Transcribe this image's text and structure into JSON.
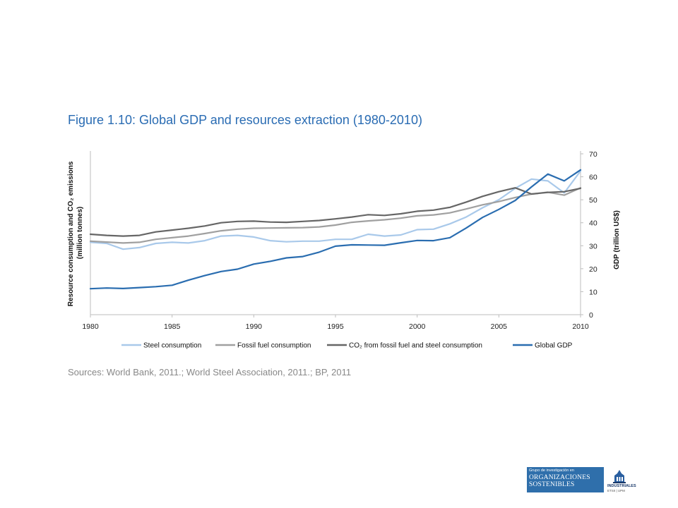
{
  "title": "Figure 1.10: Global GDP and resources extraction (1980-2010)",
  "sources": "Sources: World Bank, 2011.; World Steel Association, 2011.; BP, 2011",
  "logo": {
    "small_text": "Grupo de investigación en",
    "line1": "ORGANIZACIONES",
    "line2": "SOSTENIBLES",
    "mark_text": "INDUSTRIALES",
    "mark_sub": "ETSII | UPM"
  },
  "chart_data": {
    "type": "line",
    "title": "",
    "ylabel_left": "Resource consumption and CO₂ emissions (million tonnes)",
    "ylabel_right": "GDP (trillion US$)",
    "ylim": [
      0,
      70
    ],
    "xlim": [
      1980,
      2010
    ],
    "x_ticks": [
      "1980",
      "1985",
      "1990",
      "1995",
      "2000",
      "2005",
      "2010"
    ],
    "y_ticks": [
      "0",
      "10",
      "20",
      "30",
      "40",
      "50",
      "60",
      "70"
    ],
    "legend_position": "bottom",
    "x": [
      1980,
      1981,
      1982,
      1983,
      1984,
      1985,
      1986,
      1987,
      1988,
      1989,
      1990,
      1991,
      1992,
      1993,
      1994,
      1995,
      1996,
      1997,
      1998,
      1999,
      2000,
      2001,
      2002,
      2003,
      2004,
      2005,
      2006,
      2007,
      2008,
      2009,
      2010
    ],
    "series": [
      {
        "name": "Steel consumption",
        "color": "#a9c9ea",
        "values": [
          31.5,
          31,
          28.5,
          29.2,
          31,
          31.5,
          31.2,
          32.2,
          34.2,
          34.5,
          33.8,
          32.2,
          31.7,
          32,
          32,
          32.8,
          32.8,
          35,
          34.2,
          34.7,
          37,
          37.2,
          39.5,
          42.5,
          46.5,
          50,
          55,
          59,
          58.2,
          53,
          62.5
        ]
      },
      {
        "name": "Fossil fuel consumption",
        "color": "#a0a0a0",
        "values": [
          32,
          31.6,
          31.2,
          31.5,
          32.8,
          33.5,
          34.2,
          35.3,
          36.5,
          37.2,
          37.6,
          37.7,
          37.8,
          37.9,
          38.2,
          39,
          40.2,
          40.8,
          41.3,
          42,
          43,
          43.4,
          44.3,
          46,
          47.8,
          49.2,
          51,
          52.5,
          53.3,
          52,
          55.2
        ]
      },
      {
        "name": "CO₂ from fossil fuel and steel consumption",
        "color": "#666666",
        "values": [
          35,
          34.5,
          34.2,
          34.5,
          36,
          36.8,
          37.6,
          38.6,
          40,
          40.6,
          40.7,
          40.3,
          40.2,
          40.6,
          41,
          41.7,
          42.5,
          43.5,
          43.2,
          43.9,
          45,
          45.5,
          46.7,
          49,
          51.5,
          53.5,
          55.2,
          52.5,
          53.2,
          53.5,
          55
        ]
      },
      {
        "name": "Global GDP",
        "color": "#2a6db0",
        "values": [
          11.3,
          11.6,
          11.4,
          11.8,
          12.2,
          12.8,
          15,
          17,
          18.8,
          19.8,
          22,
          23.2,
          24.7,
          25.3,
          27.2,
          29.8,
          30.4,
          30.3,
          30.2,
          31.3,
          32.3,
          32.2,
          33.5,
          37.7,
          42.3,
          45.8,
          49.7,
          55.6,
          61.2,
          58.2,
          63
        ]
      }
    ]
  }
}
